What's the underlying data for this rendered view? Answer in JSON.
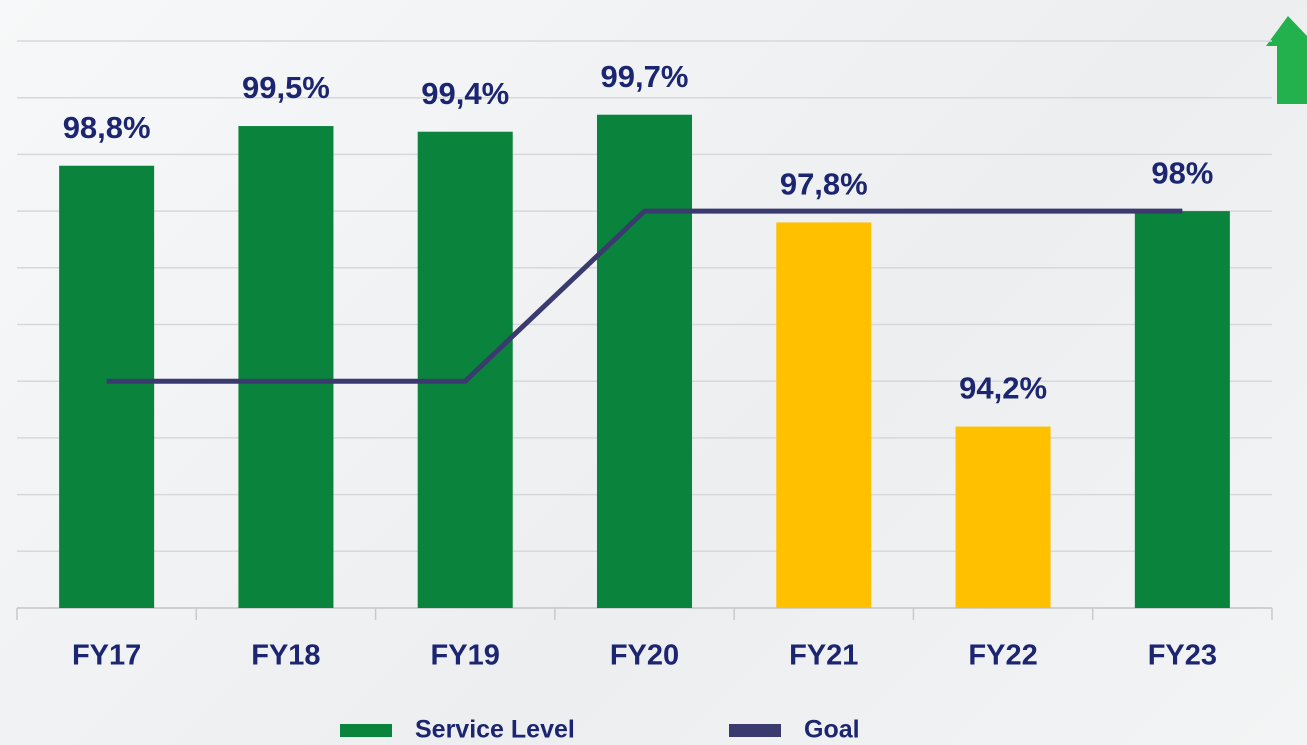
{
  "chart_data": {
    "type": "bar",
    "categories": [
      "FY17",
      "FY18",
      "FY19",
      "FY20",
      "FY21",
      "FY22",
      "FY23"
    ],
    "series": [
      {
        "name": "Service Level",
        "type": "bar",
        "color": "#0a843d",
        "colors": [
          "#0a843d",
          "#0a843d",
          "#0a843d",
          "#0a843d",
          "#ffc000",
          "#ffc000",
          "#0a843d"
        ],
        "values": [
          98.8,
          99.5,
          99.4,
          99.7,
          97.8,
          94.2,
          98
        ],
        "value_labels": [
          "98,8%",
          "99,5%",
          "99,4%",
          "99,7%",
          "97,8%",
          "94,2%",
          "98%"
        ]
      },
      {
        "name": "Goal",
        "type": "line",
        "color": "#3a3a6e",
        "values": [
          95,
          95,
          95,
          98,
          98,
          98,
          98
        ]
      }
    ],
    "ylim": [
      91,
      101
    ],
    "yticks": [
      91,
      92,
      93,
      94,
      95,
      96,
      97,
      98,
      99,
      100,
      101
    ],
    "grid": true,
    "legend": "bottom"
  }
}
